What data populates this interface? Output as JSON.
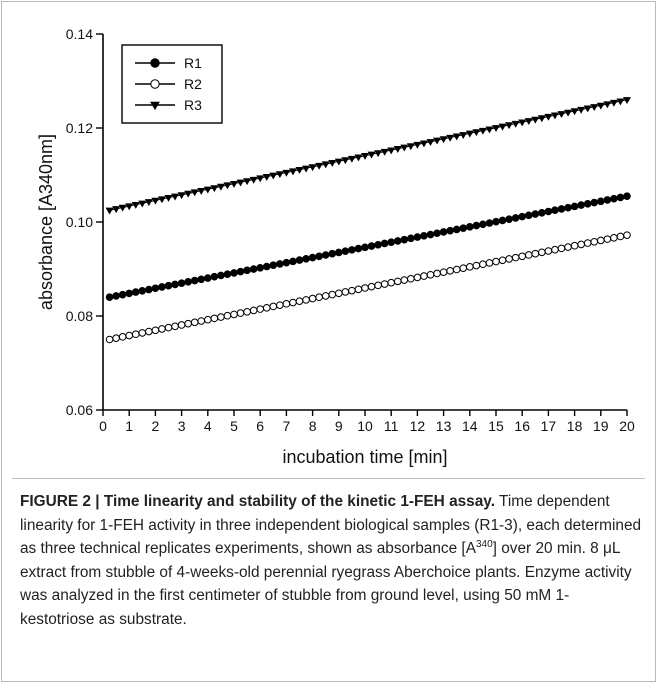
{
  "chart_data": {
    "type": "line",
    "xlabel": "incubation time [min]",
    "ylabel": "absorbance [A340nm]",
    "xlim": [
      0,
      20
    ],
    "ylim": [
      0.06,
      0.14
    ],
    "xticks": [
      "0",
      "1",
      "2",
      "3",
      "4",
      "5",
      "6",
      "7",
      "8",
      "9",
      "10",
      "11",
      "12",
      "13",
      "14",
      "15",
      "16",
      "17",
      "18",
      "19",
      "20"
    ],
    "yticks": [
      "0.06",
      "0.08",
      "0.10",
      "0.12",
      "0.14"
    ],
    "grid": false,
    "legend_position": "top-left",
    "x_start": 0.25,
    "x_end": 20,
    "x_step": 0.25,
    "series": [
      {
        "name": "R1",
        "marker": "filled-circle",
        "y_start": 0.084,
        "y_end": 0.1055
      },
      {
        "name": "R2",
        "marker": "open-circle",
        "y_start": 0.075,
        "y_end": 0.0972
      },
      {
        "name": "R3",
        "marker": "filled-triangle-down",
        "y_start": 0.1025,
        "y_end": 0.126
      }
    ]
  },
  "caption": {
    "title": "FIGURE 2 | Time linearity and stability of the kinetic 1-FEH assay.",
    "text_before_sup": " Time dependent linearity for 1-FEH activity in three independent biological samples (R1-3), each determined as three technical replicates experiments, shown as absorbance [A",
    "sup": "340",
    "text_after_sup": "] over 20 min. 8 μL extract from stubble of 4-weeks-old perennial ryegrass Aberchoice plants. Enzyme activity was analyzed in the first centimeter of stubble from ground level, using 50 mM 1-kestotriose as substrate."
  },
  "colors": {
    "line": "#000000",
    "border": "#b9b9b9",
    "text": "#222222"
  }
}
